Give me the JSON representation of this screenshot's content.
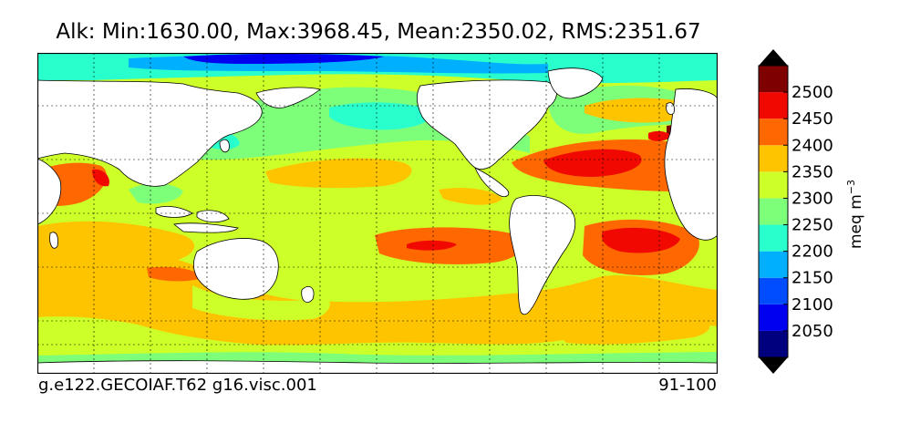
{
  "title": "Alk: Min:1630.00, Max:3968.45, Mean:2350.02, RMS:2351.67",
  "footer": {
    "case": "g.e122.GECOIAF.T62 g16.visc.001",
    "years": "91-100"
  },
  "colorbar": {
    "levels": [
      2000,
      2050,
      2100,
      2150,
      2200,
      2250,
      2300,
      2350,
      2400,
      2450,
      2500,
      2550
    ],
    "colors": [
      "#00007f",
      "#0000f0",
      "#004cff",
      "#00b0ff",
      "#29ffcd",
      "#7dff7a",
      "#cdff29",
      "#ffc400",
      "#ff6800",
      "#f10800",
      "#7f0000"
    ],
    "under_color": "#000000",
    "over_color": "#000000",
    "ticks": [
      "2050",
      "2100",
      "2150",
      "2200",
      "2250",
      "2300",
      "2350",
      "2400",
      "2450",
      "2500"
    ],
    "units": "meq m",
    "units_exponent": "−3"
  },
  "map": {
    "projection": "lon-lat grid, Pacific-centred",
    "land_color": "#ffffff",
    "gridlines": "dashed",
    "grid": true
  }
}
